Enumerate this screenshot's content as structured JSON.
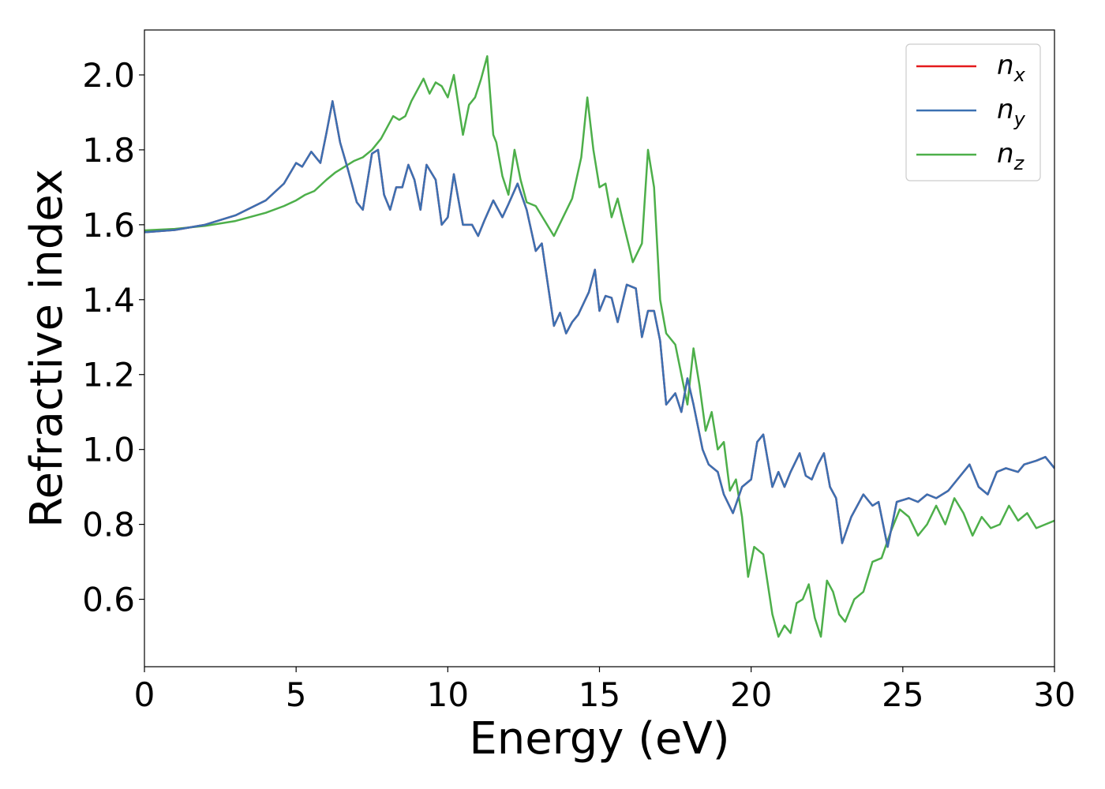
{
  "chart_data": {
    "type": "line",
    "xlabel": "Energy (eV)",
    "ylabel": "Refractive index",
    "xlim": [
      0,
      30
    ],
    "ylim": [
      0.42,
      2.12
    ],
    "xticks": [
      0,
      5,
      10,
      15,
      20,
      25,
      30
    ],
    "xtick_labels": [
      "0",
      "5",
      "10",
      "15",
      "20",
      "25",
      "30"
    ],
    "yticks": [
      0.6,
      0.8,
      1.0,
      1.2,
      1.4,
      1.6,
      1.8,
      2.0
    ],
    "ytick_labels": [
      "0.6",
      "0.8",
      "1.0",
      "1.2",
      "1.4",
      "1.6",
      "1.8",
      "2.0"
    ],
    "grid": false,
    "legend_position": "top-right",
    "series": [
      {
        "name": "n",
        "subscript": "x",
        "color": "#e41a1c",
        "x": [
          0,
          1,
          2,
          3,
          4,
          4.6,
          5.0,
          5.2,
          5.5,
          5.8,
          6.0,
          6.2,
          6.45,
          6.7,
          7.0,
          7.2,
          7.5,
          7.7,
          7.9,
          8.1,
          8.3,
          8.5,
          8.7,
          8.9,
          9.1,
          9.3,
          9.6,
          9.8,
          10.0,
          10.2,
          10.5,
          10.8,
          11.0,
          11.2,
          11.5,
          11.8,
          12.0,
          12.3,
          12.6,
          12.9,
          13.1,
          13.3,
          13.5,
          13.7,
          13.9,
          14.1,
          14.3,
          14.65,
          14.85,
          15.0,
          15.2,
          15.4,
          15.6,
          15.9,
          16.2,
          16.4,
          16.6,
          16.8,
          17.0,
          17.2,
          17.5,
          17.7,
          17.9,
          18.1,
          18.4,
          18.6,
          18.9,
          19.1,
          19.4,
          19.7,
          20.0,
          20.2,
          20.4,
          20.7,
          20.9,
          21.1,
          21.3,
          21.6,
          21.8,
          22.0,
          22.2,
          22.4,
          22.6,
          22.8,
          23.0,
          23.3,
          23.7,
          24.0,
          24.2,
          24.5,
          24.8,
          25.2,
          25.5,
          25.8,
          26.1,
          26.5,
          26.8,
          27.2,
          27.5,
          27.8,
          28.1,
          28.4,
          28.8,
          29.0,
          29.4,
          29.7,
          30.0
        ],
        "values": [
          1.58,
          1.586,
          1.6,
          1.625,
          1.665,
          1.71,
          1.765,
          1.755,
          1.795,
          1.765,
          1.845,
          1.93,
          1.82,
          1.75,
          1.66,
          1.64,
          1.79,
          1.8,
          1.68,
          1.64,
          1.7,
          1.7,
          1.76,
          1.72,
          1.64,
          1.76,
          1.72,
          1.6,
          1.62,
          1.735,
          1.6,
          1.6,
          1.57,
          1.61,
          1.665,
          1.62,
          1.655,
          1.71,
          1.64,
          1.53,
          1.55,
          1.44,
          1.33,
          1.365,
          1.31,
          1.34,
          1.36,
          1.42,
          1.48,
          1.37,
          1.41,
          1.405,
          1.34,
          1.44,
          1.43,
          1.3,
          1.37,
          1.37,
          1.29,
          1.12,
          1.15,
          1.1,
          1.19,
          1.12,
          1.0,
          0.96,
          0.94,
          0.88,
          0.83,
          0.9,
          0.92,
          1.02,
          1.04,
          0.9,
          0.94,
          0.9,
          0.94,
          0.99,
          0.93,
          0.92,
          0.96,
          0.99,
          0.9,
          0.87,
          0.75,
          0.82,
          0.88,
          0.85,
          0.86,
          0.74,
          0.86,
          0.87,
          0.86,
          0.88,
          0.87,
          0.89,
          0.92,
          0.96,
          0.9,
          0.88,
          0.94,
          0.95,
          0.94,
          0.96,
          0.97,
          0.98,
          0.95
        ]
      },
      {
        "name": "n",
        "subscript": "y",
        "color": "#3b70b2",
        "x": [
          0,
          1,
          2,
          3,
          4,
          4.6,
          5.0,
          5.2,
          5.5,
          5.8,
          6.0,
          6.2,
          6.45,
          6.7,
          7.0,
          7.2,
          7.5,
          7.7,
          7.9,
          8.1,
          8.3,
          8.5,
          8.7,
          8.9,
          9.1,
          9.3,
          9.6,
          9.8,
          10.0,
          10.2,
          10.5,
          10.8,
          11.0,
          11.2,
          11.5,
          11.8,
          12.0,
          12.3,
          12.6,
          12.9,
          13.1,
          13.3,
          13.5,
          13.7,
          13.9,
          14.1,
          14.3,
          14.65,
          14.85,
          15.0,
          15.2,
          15.4,
          15.6,
          15.9,
          16.2,
          16.4,
          16.6,
          16.8,
          17.0,
          17.2,
          17.5,
          17.7,
          17.9,
          18.1,
          18.4,
          18.6,
          18.9,
          19.1,
          19.4,
          19.7,
          20.0,
          20.2,
          20.4,
          20.7,
          20.9,
          21.1,
          21.3,
          21.6,
          21.8,
          22.0,
          22.2,
          22.4,
          22.6,
          22.8,
          23.0,
          23.3,
          23.7,
          24.0,
          24.2,
          24.5,
          24.8,
          25.2,
          25.5,
          25.8,
          26.1,
          26.5,
          26.8,
          27.2,
          27.5,
          27.8,
          28.1,
          28.4,
          28.8,
          29.0,
          29.4,
          29.7,
          30.0
        ],
        "values": [
          1.58,
          1.586,
          1.6,
          1.625,
          1.665,
          1.71,
          1.765,
          1.755,
          1.795,
          1.765,
          1.845,
          1.93,
          1.82,
          1.75,
          1.66,
          1.64,
          1.79,
          1.8,
          1.68,
          1.64,
          1.7,
          1.7,
          1.76,
          1.72,
          1.64,
          1.76,
          1.72,
          1.6,
          1.62,
          1.735,
          1.6,
          1.6,
          1.57,
          1.61,
          1.665,
          1.62,
          1.655,
          1.71,
          1.64,
          1.53,
          1.55,
          1.44,
          1.33,
          1.365,
          1.31,
          1.34,
          1.36,
          1.42,
          1.48,
          1.37,
          1.41,
          1.405,
          1.34,
          1.44,
          1.43,
          1.3,
          1.37,
          1.37,
          1.29,
          1.12,
          1.15,
          1.1,
          1.19,
          1.12,
          1.0,
          0.96,
          0.94,
          0.88,
          0.83,
          0.9,
          0.92,
          1.02,
          1.04,
          0.9,
          0.94,
          0.9,
          0.94,
          0.99,
          0.93,
          0.92,
          0.96,
          0.99,
          0.9,
          0.87,
          0.75,
          0.82,
          0.88,
          0.85,
          0.86,
          0.74,
          0.86,
          0.87,
          0.86,
          0.88,
          0.87,
          0.89,
          0.92,
          0.96,
          0.9,
          0.88,
          0.94,
          0.95,
          0.94,
          0.96,
          0.97,
          0.98,
          0.95
        ]
      },
      {
        "name": "n",
        "subscript": "z",
        "color": "#4daf4a",
        "x": [
          0,
          1,
          2,
          3,
          4,
          4.6,
          5.0,
          5.3,
          5.6,
          6.0,
          6.3,
          6.6,
          6.9,
          7.2,
          7.5,
          7.8,
          8.0,
          8.2,
          8.4,
          8.6,
          8.8,
          9.0,
          9.2,
          9.4,
          9.6,
          9.8,
          10.0,
          10.2,
          10.5,
          10.7,
          10.9,
          11.1,
          11.3,
          11.5,
          11.6,
          11.8,
          12.0,
          12.2,
          12.4,
          12.6,
          12.9,
          13.2,
          13.5,
          13.8,
          14.1,
          14.4,
          14.6,
          14.8,
          15.0,
          15.2,
          15.4,
          15.6,
          15.8,
          16.1,
          16.4,
          16.6,
          16.8,
          17.0,
          17.2,
          17.5,
          17.7,
          17.9,
          18.1,
          18.3,
          18.5,
          18.7,
          18.9,
          19.1,
          19.3,
          19.5,
          19.7,
          19.9,
          20.1,
          20.4,
          20.7,
          20.9,
          21.1,
          21.3,
          21.5,
          21.7,
          21.9,
          22.1,
          22.3,
          22.5,
          22.7,
          22.9,
          23.1,
          23.4,
          23.7,
          24.0,
          24.3,
          24.6,
          24.9,
          25.2,
          25.5,
          25.8,
          26.1,
          26.4,
          26.7,
          27.0,
          27.3,
          27.6,
          27.9,
          28.2,
          28.5,
          28.8,
          29.1,
          29.4,
          29.7,
          30.0
        ],
        "values": [
          1.585,
          1.589,
          1.597,
          1.61,
          1.632,
          1.65,
          1.665,
          1.68,
          1.69,
          1.72,
          1.74,
          1.755,
          1.77,
          1.78,
          1.8,
          1.83,
          1.86,
          1.89,
          1.88,
          1.89,
          1.93,
          1.96,
          1.99,
          1.95,
          1.98,
          1.97,
          1.94,
          2.0,
          1.84,
          1.92,
          1.94,
          1.99,
          2.05,
          1.84,
          1.82,
          1.73,
          1.68,
          1.8,
          1.72,
          1.66,
          1.65,
          1.61,
          1.57,
          1.62,
          1.67,
          1.78,
          1.94,
          1.8,
          1.7,
          1.71,
          1.62,
          1.67,
          1.6,
          1.5,
          1.55,
          1.8,
          1.7,
          1.4,
          1.31,
          1.28,
          1.2,
          1.12,
          1.27,
          1.17,
          1.05,
          1.1,
          1.0,
          1.02,
          0.89,
          0.92,
          0.82,
          0.66,
          0.74,
          0.72,
          0.56,
          0.5,
          0.53,
          0.51,
          0.59,
          0.6,
          0.64,
          0.55,
          0.5,
          0.65,
          0.62,
          0.56,
          0.54,
          0.6,
          0.62,
          0.7,
          0.71,
          0.78,
          0.84,
          0.82,
          0.77,
          0.8,
          0.85,
          0.8,
          0.87,
          0.83,
          0.77,
          0.82,
          0.79,
          0.8,
          0.85,
          0.81,
          0.83,
          0.79,
          0.8,
          0.81
        ]
      }
    ]
  }
}
